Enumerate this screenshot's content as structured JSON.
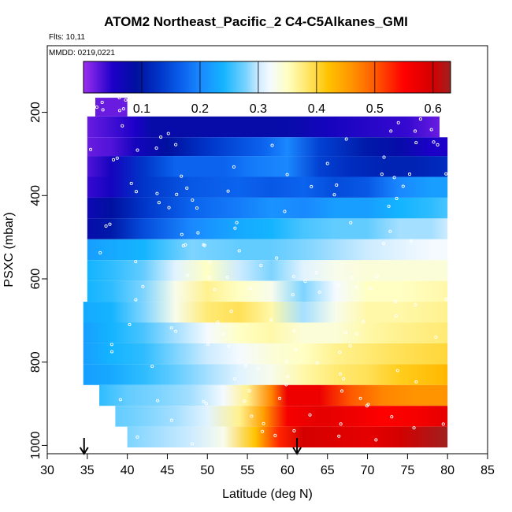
{
  "title": "ATOM2 Northeast_Pacific_2 C4-C5Alkanes_GMI",
  "flights_label": "Flts: 10,11",
  "date_label": "MMDD: 0219,0221",
  "chart_data": {
    "type": "heatmap",
    "title": "ATOM2 Northeast_Pacific_2 C4-C5Alkanes_GMI",
    "xlabel": "Latitude (deg N)",
    "ylabel": "PSXC (mbar)",
    "xlim": [
      30,
      85
    ],
    "ylim": [
      1020,
      40
    ],
    "y_reversed": true,
    "xticks": [
      30,
      35,
      40,
      45,
      50,
      55,
      60,
      65,
      70,
      75,
      80,
      85
    ],
    "yticks": [
      200,
      400,
      600,
      800,
      1000
    ],
    "colorbar": {
      "range": [
        0,
        0.63
      ],
      "ticks": [
        0.1,
        0.2,
        0.3,
        0.4,
        0.5,
        0.6
      ],
      "stops": [
        {
          "v": 0.0,
          "color": "#9d2ff0"
        },
        {
          "v": 0.05,
          "color": "#1c00c8"
        },
        {
          "v": 0.09,
          "color": "#00109f"
        },
        {
          "v": 0.13,
          "color": "#0035c8"
        },
        {
          "v": 0.17,
          "color": "#0b63ee"
        },
        {
          "v": 0.2,
          "color": "#1a88ff"
        },
        {
          "v": 0.24,
          "color": "#14b4ff"
        },
        {
          "v": 0.28,
          "color": "#7dd4ff"
        },
        {
          "v": 0.3,
          "color": "#cdebff"
        },
        {
          "v": 0.32,
          "color": "#f4faff"
        },
        {
          "v": 0.35,
          "color": "#ffffc4"
        },
        {
          "v": 0.38,
          "color": "#ffea74"
        },
        {
          "v": 0.42,
          "color": "#ffc300"
        },
        {
          "v": 0.46,
          "color": "#ff9400"
        },
        {
          "v": 0.5,
          "color": "#ff5a00"
        },
        {
          "v": 0.55,
          "color": "#ff0000"
        },
        {
          "v": 0.6,
          "color": "#d40000"
        },
        {
          "v": 0.63,
          "color": "#a02020"
        }
      ]
    },
    "arrows_latitude": [
      34.6,
      61.2
    ],
    "rows": [
      {
        "p_top": 165,
        "p_bot": 210,
        "x0": 36,
        "x1": 40,
        "segs": [
          [
            36,
            0.02
          ],
          [
            40,
            0.02
          ]
        ]
      },
      {
        "p_top": 210,
        "p_bot": 260,
        "x0": 35,
        "x1": 79,
        "segs": [
          [
            35,
            0.02
          ],
          [
            41,
            0.05
          ],
          [
            43,
            0.08
          ],
          [
            60,
            0.08
          ],
          [
            65,
            0.06
          ],
          [
            75,
            0.04
          ],
          [
            79,
            0.02
          ]
        ]
      },
      {
        "p_top": 260,
        "p_bot": 305,
        "x0": 35,
        "x1": 80,
        "segs": [
          [
            35,
            0.02
          ],
          [
            38,
            0.03
          ],
          [
            41,
            0.06
          ],
          [
            45,
            0.09
          ],
          [
            50,
            0.13
          ],
          [
            57,
            0.17
          ],
          [
            60,
            0.2
          ],
          [
            64,
            0.14
          ],
          [
            70,
            0.1
          ],
          [
            74,
            0.08
          ],
          [
            78,
            0.05
          ],
          [
            80,
            0.05
          ]
        ]
      },
      {
        "p_top": 305,
        "p_bot": 355,
        "x0": 35,
        "x1": 80,
        "segs": [
          [
            35,
            0.03
          ],
          [
            38,
            0.06
          ],
          [
            42,
            0.13
          ],
          [
            46,
            0.17
          ],
          [
            52,
            0.17
          ],
          [
            56,
            0.19
          ],
          [
            60,
            0.2
          ],
          [
            64,
            0.14
          ],
          [
            68,
            0.12
          ],
          [
            72,
            0.11
          ],
          [
            76,
            0.11
          ],
          [
            80,
            0.12
          ]
        ]
      },
      {
        "p_top": 355,
        "p_bot": 405,
        "x0": 35,
        "x1": 80,
        "segs": [
          [
            35,
            0.04
          ],
          [
            38,
            0.06
          ],
          [
            42,
            0.13
          ],
          [
            48,
            0.16
          ],
          [
            54,
            0.17
          ],
          [
            58,
            0.16
          ],
          [
            62,
            0.17
          ],
          [
            66,
            0.15
          ],
          [
            70,
            0.16
          ],
          [
            74,
            0.2
          ],
          [
            78,
            0.22
          ],
          [
            80,
            0.22
          ]
        ]
      },
      {
        "p_top": 405,
        "p_bot": 455,
        "x0": 35,
        "x1": 80,
        "segs": [
          [
            35,
            0.07
          ],
          [
            38,
            0.09
          ],
          [
            42,
            0.13
          ],
          [
            48,
            0.17
          ],
          [
            54,
            0.19
          ],
          [
            58,
            0.21
          ],
          [
            62,
            0.2
          ],
          [
            66,
            0.22
          ],
          [
            70,
            0.22
          ],
          [
            74,
            0.24
          ],
          [
            78,
            0.25
          ],
          [
            80,
            0.26
          ]
        ]
      },
      {
        "p_top": 455,
        "p_bot": 505,
        "x0": 35,
        "x1": 80,
        "segs": [
          [
            35,
            0.08
          ],
          [
            38,
            0.1
          ],
          [
            42,
            0.15
          ],
          [
            48,
            0.2
          ],
          [
            54,
            0.23
          ],
          [
            58,
            0.24
          ],
          [
            62,
            0.26
          ],
          [
            66,
            0.27
          ],
          [
            70,
            0.27
          ],
          [
            74,
            0.29
          ],
          [
            78,
            0.29
          ],
          [
            80,
            0.3
          ]
        ]
      },
      {
        "p_top": 505,
        "p_bot": 555,
        "x0": 35,
        "x1": 80,
        "segs": [
          [
            35,
            0.22
          ],
          [
            38,
            0.23
          ],
          [
            42,
            0.24
          ],
          [
            48,
            0.28
          ],
          [
            54,
            0.27
          ],
          [
            58,
            0.27
          ],
          [
            62,
            0.28
          ],
          [
            66,
            0.29
          ],
          [
            70,
            0.3
          ],
          [
            74,
            0.31
          ],
          [
            78,
            0.32
          ],
          [
            80,
            0.32
          ]
        ]
      },
      {
        "p_top": 555,
        "p_bot": 605,
        "x0": 35,
        "x1": 80,
        "segs": [
          [
            35,
            0.24
          ],
          [
            38,
            0.25
          ],
          [
            42,
            0.27
          ],
          [
            46,
            0.31
          ],
          [
            50,
            0.35
          ],
          [
            54,
            0.3
          ],
          [
            58,
            0.28
          ],
          [
            62,
            0.31
          ],
          [
            66,
            0.33
          ],
          [
            70,
            0.34
          ],
          [
            74,
            0.34
          ],
          [
            80,
            0.34
          ]
        ]
      },
      {
        "p_top": 605,
        "p_bot": 655,
        "x0": 35,
        "x1": 80,
        "segs": [
          [
            35,
            0.24
          ],
          [
            38,
            0.25
          ],
          [
            42,
            0.28
          ],
          [
            46,
            0.33
          ],
          [
            50,
            0.37
          ],
          [
            54,
            0.35
          ],
          [
            58,
            0.33
          ],
          [
            62,
            0.28
          ],
          [
            66,
            0.32
          ],
          [
            70,
            0.35
          ],
          [
            74,
            0.35
          ],
          [
            80,
            0.36
          ]
        ]
      },
      {
        "p_top": 655,
        "p_bot": 705,
        "x0": 34.5,
        "x1": 80,
        "segs": [
          [
            34.5,
            0.23
          ],
          [
            38,
            0.24
          ],
          [
            42,
            0.28
          ],
          [
            46,
            0.33
          ],
          [
            50,
            0.38
          ],
          [
            54,
            0.39
          ],
          [
            58,
            0.36
          ],
          [
            62,
            0.29
          ],
          [
            66,
            0.33
          ],
          [
            70,
            0.36
          ],
          [
            74,
            0.36
          ],
          [
            80,
            0.37
          ]
        ]
      },
      {
        "p_top": 705,
        "p_bot": 755,
        "x0": 34.5,
        "x1": 80,
        "segs": [
          [
            34.5,
            0.22
          ],
          [
            38,
            0.24
          ],
          [
            42,
            0.26
          ],
          [
            46,
            0.29
          ],
          [
            50,
            0.32
          ],
          [
            54,
            0.35
          ],
          [
            58,
            0.36
          ],
          [
            62,
            0.34
          ],
          [
            66,
            0.34
          ],
          [
            70,
            0.36
          ],
          [
            74,
            0.37
          ],
          [
            80,
            0.38
          ]
        ]
      },
      {
        "p_top": 755,
        "p_bot": 805,
        "x0": 34.5,
        "x1": 80,
        "segs": [
          [
            34.5,
            0.22
          ],
          [
            38,
            0.24
          ],
          [
            42,
            0.25
          ],
          [
            46,
            0.28
          ],
          [
            50,
            0.3
          ],
          [
            54,
            0.32
          ],
          [
            58,
            0.34
          ],
          [
            62,
            0.35
          ],
          [
            66,
            0.37
          ],
          [
            70,
            0.38
          ],
          [
            74,
            0.39
          ],
          [
            80,
            0.4
          ]
        ]
      },
      {
        "p_top": 805,
        "p_bot": 855,
        "x0": 34.5,
        "x1": 80,
        "segs": [
          [
            34.5,
            0.22
          ],
          [
            38,
            0.23
          ],
          [
            42,
            0.25
          ],
          [
            46,
            0.27
          ],
          [
            50,
            0.29
          ],
          [
            54,
            0.31
          ],
          [
            58,
            0.33
          ],
          [
            62,
            0.36
          ],
          [
            66,
            0.38
          ],
          [
            70,
            0.39
          ],
          [
            74,
            0.41
          ],
          [
            80,
            0.43
          ]
        ]
      },
      {
        "p_top": 855,
        "p_bot": 905,
        "x0": 36.5,
        "x1": 80,
        "segs": [
          [
            36.5,
            0.25
          ],
          [
            40,
            0.27
          ],
          [
            44,
            0.28
          ],
          [
            48,
            0.29
          ],
          [
            52,
            0.32
          ],
          [
            55,
            0.37
          ],
          [
            58,
            0.47
          ],
          [
            60,
            0.57
          ],
          [
            64,
            0.57
          ],
          [
            68,
            0.5
          ],
          [
            72,
            0.47
          ],
          [
            76,
            0.46
          ],
          [
            80,
            0.46
          ]
        ]
      },
      {
        "p_top": 905,
        "p_bot": 955,
        "x0": 38.5,
        "x1": 80,
        "segs": [
          [
            38.5,
            0.27
          ],
          [
            42,
            0.28
          ],
          [
            46,
            0.29
          ],
          [
            50,
            0.31
          ],
          [
            54,
            0.37
          ],
          [
            57,
            0.45
          ],
          [
            60,
            0.56
          ],
          [
            64,
            0.58
          ],
          [
            68,
            0.57
          ],
          [
            72,
            0.55
          ],
          [
            76,
            0.56
          ],
          [
            80,
            0.58
          ]
        ]
      },
      {
        "p_top": 955,
        "p_bot": 1005,
        "x0": 40,
        "x1": 80,
        "segs": [
          [
            40,
            0.28
          ],
          [
            44,
            0.29
          ],
          [
            48,
            0.3
          ],
          [
            52,
            0.33
          ],
          [
            56,
            0.42
          ],
          [
            59,
            0.53
          ],
          [
            62,
            0.6
          ],
          [
            66,
            0.59
          ],
          [
            70,
            0.58
          ],
          [
            74,
            0.6
          ],
          [
            78,
            0.62
          ],
          [
            80,
            0.63
          ]
        ]
      }
    ]
  }
}
